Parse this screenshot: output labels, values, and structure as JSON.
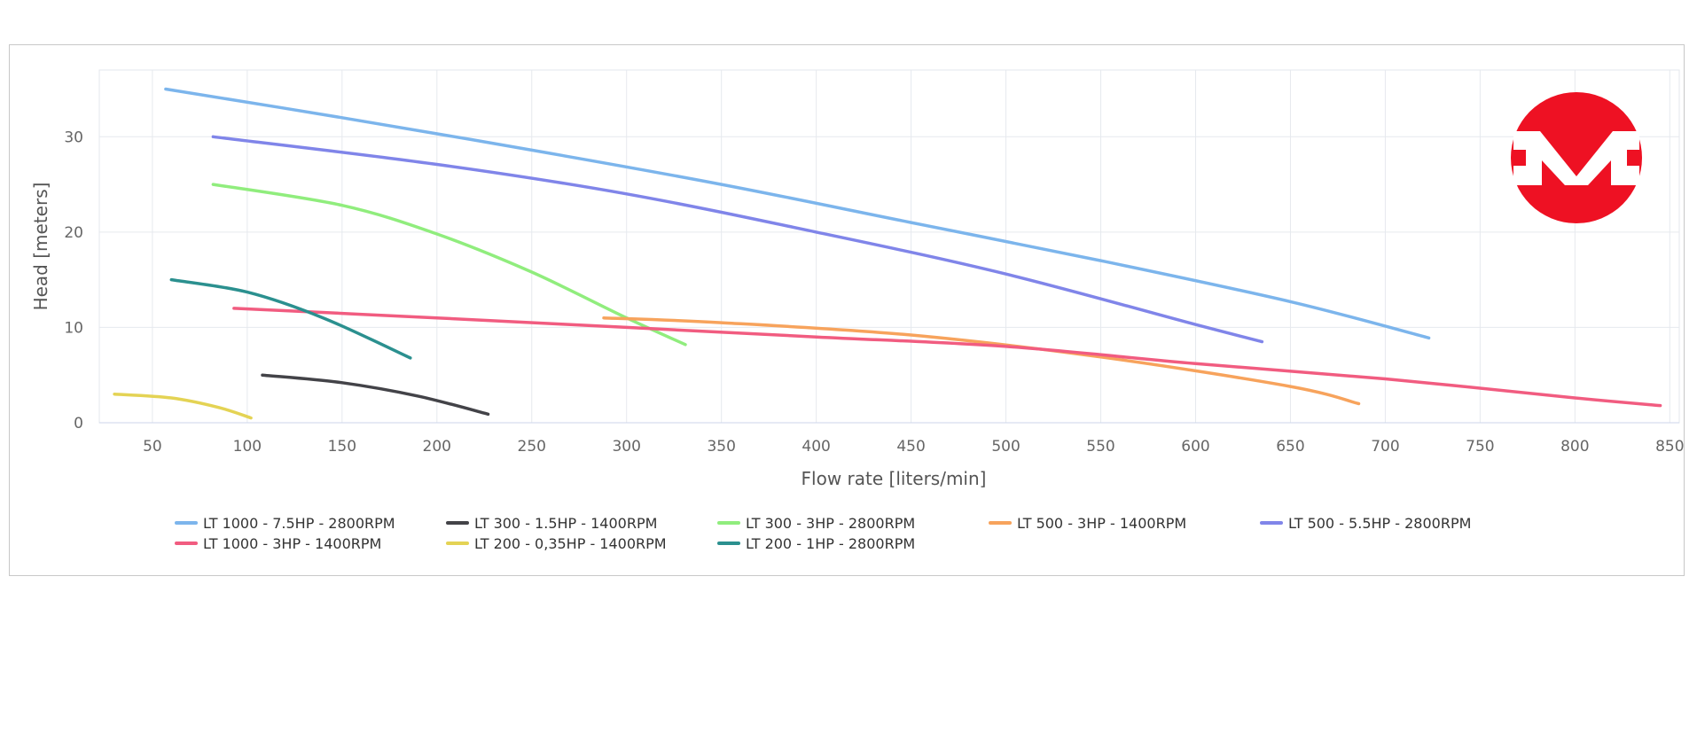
{
  "chart_data": {
    "type": "line",
    "title": "",
    "xlabel": "Flow rate [liters/min]",
    "ylabel": "Head [meters]",
    "xlim": [
      22,
      855
    ],
    "ylim": [
      0,
      37
    ],
    "xticks": [
      50,
      100,
      150,
      200,
      250,
      300,
      350,
      400,
      450,
      500,
      550,
      600,
      650,
      700,
      750,
      800,
      850
    ],
    "yticks": [
      0,
      10,
      20,
      30
    ],
    "grid": true,
    "legend_position": "bottom",
    "logo": "brand-logo-red-circle-m",
    "series": [
      {
        "name": "LT 1000 - 7.5HP - 2800RPM",
        "color": "#7cb5ec",
        "x": [
          57,
          150,
          250,
          350,
          450,
          550,
          650,
          723
        ],
        "y": [
          35,
          32,
          28.6,
          25,
          21,
          17,
          12.7,
          8.9
        ]
      },
      {
        "name": "LT 300 - 1.5HP - 1400RPM",
        "color": "#434348",
        "x": [
          108,
          150,
          190,
          227
        ],
        "y": [
          5,
          4.2,
          2.8,
          0.9
        ]
      },
      {
        "name": "LT 300 - 3HP - 2800RPM",
        "color": "#90ed7d",
        "x": [
          82,
          150,
          200,
          250,
          300,
          331
        ],
        "y": [
          25,
          22.8,
          19.8,
          15.8,
          11,
          8.2
        ]
      },
      {
        "name": "LT 500 - 3HP - 1400RPM",
        "color": "#f7a35c",
        "x": [
          288,
          350,
          450,
          550,
          650,
          686
        ],
        "y": [
          11,
          10.5,
          9.2,
          6.9,
          3.8,
          2
        ]
      },
      {
        "name": "LT 500 - 5.5HP - 2800RPM",
        "color": "#8085e9",
        "x": [
          82,
          200,
          300,
          400,
          500,
          600,
          635
        ],
        "y": [
          30,
          27.1,
          24,
          20,
          15.6,
          10.3,
          8.5
        ]
      },
      {
        "name": "LT 1000 - 3HP - 1400RPM",
        "color": "#f15c80",
        "x": [
          93,
          200,
          300,
          400,
          500,
          600,
          700,
          800,
          845
        ],
        "y": [
          12,
          11,
          10,
          9,
          8,
          6.2,
          4.6,
          2.6,
          1.8
        ]
      },
      {
        "name": "LT 200 - 0,35HP - 1400RPM",
        "color": "#e4d354",
        "x": [
          30,
          60,
          85,
          102
        ],
        "y": [
          3,
          2.6,
          1.6,
          0.5
        ]
      },
      {
        "name": "LT 200 - 1HP - 2800RPM",
        "color": "#2b908f",
        "x": [
          60,
          100,
          140,
          186
        ],
        "y": [
          15,
          13.7,
          11,
          6.8
        ]
      }
    ]
  }
}
